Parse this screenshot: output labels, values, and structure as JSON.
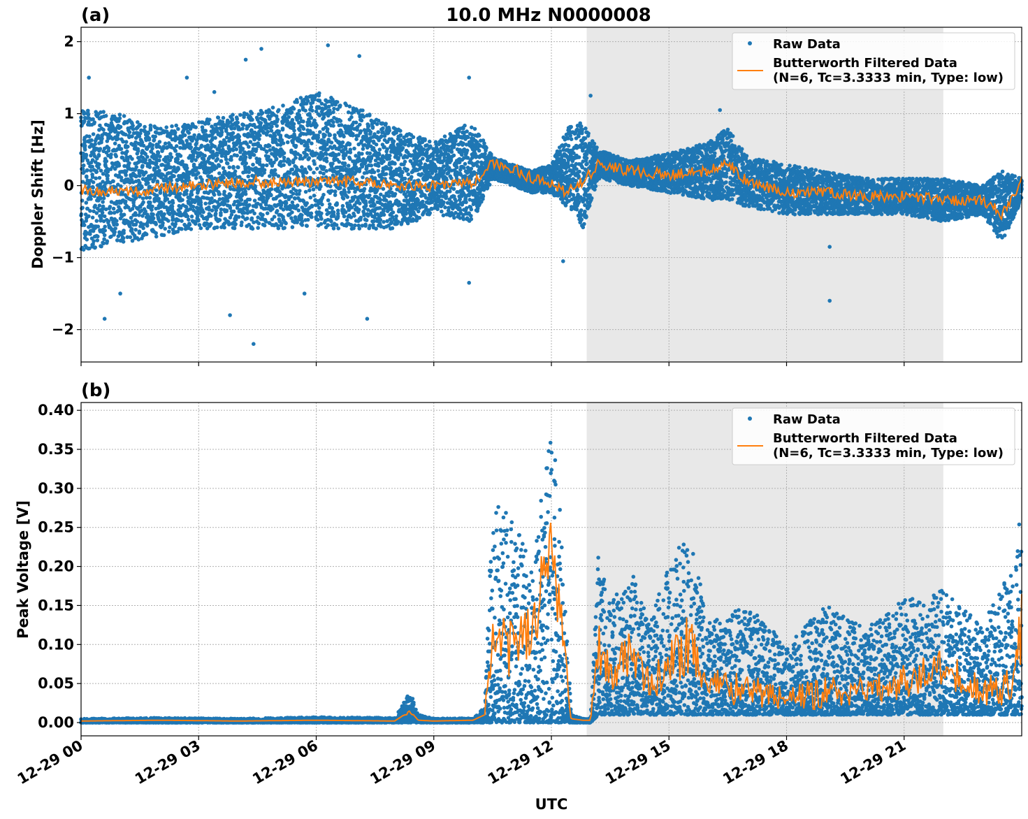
{
  "figure": {
    "title": "10.0 MHz N0000008",
    "xlabel": "UTC",
    "x_tick_labels": [
      "12-29 00",
      "12-29 03",
      "12-29 06",
      "12-29 09",
      "12-29 12",
      "12-29 15",
      "12-29 18",
      "12-29 21"
    ]
  },
  "chart_data": [
    {
      "type": "scatter",
      "panel_label": "(a)",
      "xlabel": "",
      "ylabel": "Doppler Shift [Hz]",
      "x_unit": "hours UTC on 12-29",
      "xlim": [
        0,
        24
      ],
      "ylim": [
        -2.45,
        2.2
      ],
      "y_ticks": [
        -2,
        -1,
        0,
        1,
        2
      ],
      "y_tick_labels": [
        "−2",
        "−1",
        "0",
        "1",
        "2"
      ],
      "grid": true,
      "legend_location": "upper right",
      "shaded_interval": [
        12.9,
        22.0
      ],
      "series": [
        {
          "name": "Raw Data",
          "kind": "scatter",
          "color": "#1f77b4",
          "x": [
            0,
            1,
            2,
            3,
            4,
            5,
            6,
            7,
            8,
            9,
            10,
            10.5,
            11,
            11.5,
            12,
            12.4,
            12.8,
            13.2,
            14,
            15,
            16,
            16.5,
            17,
            18,
            19,
            20,
            21,
            22,
            23,
            23.5,
            24
          ],
          "y_low": [
            -0.9,
            -0.8,
            -0.7,
            -0.6,
            -0.6,
            -0.6,
            -0.6,
            -0.6,
            -0.6,
            -0.4,
            -0.5,
            0.1,
            0.0,
            -0.1,
            -0.1,
            -0.3,
            -0.6,
            0.1,
            0.0,
            -0.1,
            -0.2,
            -0.2,
            -0.3,
            -0.4,
            -0.4,
            -0.4,
            -0.4,
            -0.5,
            -0.4,
            -0.8,
            -0.2
          ],
          "y_high": [
            1.1,
            1.0,
            0.8,
            0.9,
            1.0,
            1.1,
            1.3,
            1.1,
            0.8,
            0.6,
            0.9,
            0.4,
            0.3,
            0.2,
            0.3,
            0.8,
            0.9,
            0.5,
            0.35,
            0.45,
            0.6,
            0.8,
            0.4,
            0.3,
            0.2,
            0.1,
            0.1,
            0.1,
            0.0,
            0.2,
            0.1
          ],
          "outliers": [
            [
              0.2,
              1.5
            ],
            [
              0.6,
              -1.85
            ],
            [
              1.0,
              -1.5
            ],
            [
              2.7,
              1.5
            ],
            [
              3.4,
              1.3
            ],
            [
              3.8,
              -1.8
            ],
            [
              4.2,
              1.75
            ],
            [
              4.4,
              -2.2
            ],
            [
              4.6,
              1.9
            ],
            [
              5.7,
              -1.5
            ],
            [
              6.3,
              1.95
            ],
            [
              7.1,
              1.8
            ],
            [
              7.3,
              -1.85
            ],
            [
              9.9,
              1.5
            ],
            [
              9.9,
              -1.35
            ],
            [
              12.3,
              -1.05
            ],
            [
              13.0,
              1.25
            ],
            [
              16.3,
              1.05
            ],
            [
              19.1,
              -1.6
            ],
            [
              19.1,
              -0.85
            ]
          ]
        },
        {
          "name": "Butterworth Filtered Data\n(N=6, Tc=3.3333 min, Type: low)",
          "kind": "line",
          "color": "#ff7f0e",
          "x": [
            0,
            1,
            2,
            3,
            4,
            5,
            6,
            7,
            8,
            9,
            10,
            10.5,
            11,
            11.5,
            12,
            12.4,
            12.8,
            13.2,
            14,
            15,
            16,
            16.5,
            17,
            18,
            19,
            20,
            21,
            22,
            23,
            23.5,
            24
          ],
          "y": [
            -0.05,
            -0.1,
            -0.05,
            0.0,
            0.05,
            0.05,
            0.05,
            0.05,
            0.0,
            0.0,
            0.05,
            0.3,
            0.25,
            0.1,
            0.05,
            -0.1,
            0.05,
            0.3,
            0.2,
            0.15,
            0.2,
            0.3,
            0.05,
            -0.1,
            -0.1,
            -0.15,
            -0.15,
            -0.2,
            -0.2,
            -0.4,
            0.05
          ]
        }
      ]
    },
    {
      "type": "scatter",
      "panel_label": "(b)",
      "xlabel": "UTC",
      "ylabel": "Peak Voltage [V]",
      "x_unit": "hours UTC on 12-29",
      "xlim": [
        0,
        24
      ],
      "ylim": [
        -0.017,
        0.41
      ],
      "y_ticks": [
        0.0,
        0.05,
        0.1,
        0.15,
        0.2,
        0.25,
        0.3,
        0.35,
        0.4
      ],
      "y_tick_labels": [
        "0.00",
        "0.05",
        "0.10",
        "0.15",
        "0.20",
        "0.25",
        "0.30",
        "0.35",
        "0.40"
      ],
      "grid": true,
      "legend_location": "upper right",
      "shaded_interval": [
        12.9,
        22.0
      ],
      "series": [
        {
          "name": "Raw Data",
          "kind": "scatter",
          "color": "#1f77b4",
          "x": [
            0,
            2,
            4,
            6,
            8,
            8.4,
            8.6,
            9,
            10,
            10.3,
            10.5,
            11,
            11.5,
            12,
            12.1,
            12.3,
            12.5,
            12.8,
            13.0,
            13.2,
            13.5,
            14,
            14.5,
            15,
            15.5,
            16,
            17,
            18,
            19,
            20,
            21,
            22,
            23,
            23.8,
            24
          ],
          "y_low": [
            0.0,
            0.0,
            0.0,
            0.0,
            0.0,
            0.0,
            0.0,
            0.0,
            0.0,
            0.0,
            0.0,
            0.0,
            0.0,
            0.0,
            0.0,
            0.0,
            0.0,
            0.0,
            0.0,
            0.01,
            0.01,
            0.01,
            0.01,
            0.01,
            0.01,
            0.01,
            0.01,
            0.01,
            0.01,
            0.01,
            0.01,
            0.01,
            0.01,
            0.01,
            0.01
          ],
          "y_high": [
            0.005,
            0.006,
            0.005,
            0.007,
            0.006,
            0.04,
            0.01,
            0.005,
            0.006,
            0.02,
            0.3,
            0.27,
            0.2,
            0.39,
            0.35,
            0.25,
            0.01,
            0.005,
            0.005,
            0.22,
            0.15,
            0.2,
            0.13,
            0.2,
            0.25,
            0.13,
            0.15,
            0.1,
            0.15,
            0.12,
            0.16,
            0.17,
            0.13,
            0.2,
            0.28
          ]
        },
        {
          "name": "Butterworth Filtered Data\n(N=6, Tc=3.3333 min, Type: low)",
          "kind": "line",
          "color": "#ff7f0e",
          "x": [
            0,
            2,
            4,
            6,
            8,
            8.4,
            8.6,
            9,
            10,
            10.3,
            10.5,
            11,
            11.5,
            12,
            12.1,
            12.3,
            12.5,
            12.8,
            13.0,
            13.2,
            13.5,
            14,
            14.5,
            15,
            15.5,
            16,
            17,
            18,
            19,
            20,
            21,
            22,
            23,
            23.8,
            24
          ],
          "y": [
            0.002,
            0.003,
            0.002,
            0.003,
            0.002,
            0.015,
            0.003,
            0.002,
            0.003,
            0.01,
            0.12,
            0.1,
            0.12,
            0.22,
            0.19,
            0.1,
            0.005,
            0.003,
            0.003,
            0.1,
            0.06,
            0.09,
            0.05,
            0.07,
            0.1,
            0.05,
            0.04,
            0.03,
            0.04,
            0.04,
            0.05,
            0.07,
            0.04,
            0.05,
            0.12
          ]
        }
      ]
    }
  ]
}
